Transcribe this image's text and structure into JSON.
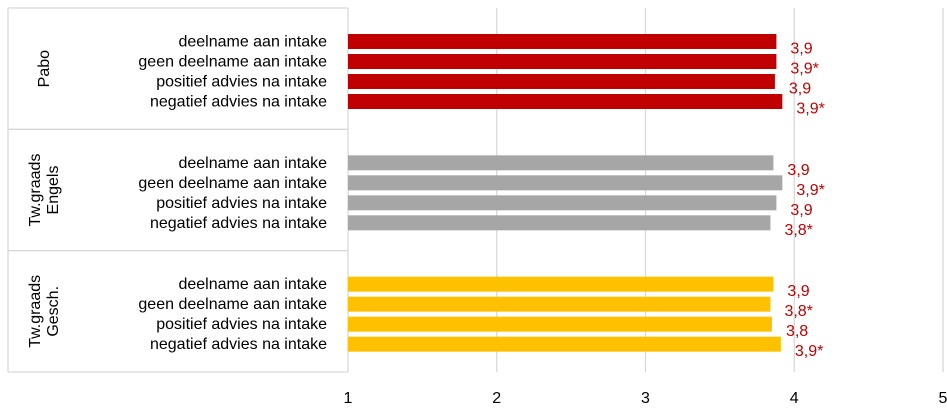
{
  "chart_data": {
    "type": "bar",
    "orientation": "horizontal",
    "xlim": [
      1,
      5
    ],
    "x_ticks": [
      "1",
      "2",
      "3",
      "4",
      "5"
    ],
    "grid": "vertical",
    "groups": [
      {
        "name_lines": [
          "Pabo"
        ],
        "color": "#C00000",
        "bars": [
          {
            "label": "deelname aan intake",
            "value": 3.88,
            "data_label": "3,9"
          },
          {
            "label": "geen deelname aan intake",
            "value": 3.88,
            "data_label": "3,9*"
          },
          {
            "label": "positief advies na intake",
            "value": 3.87,
            "data_label": "3,9"
          },
          {
            "label": "negatief advies na intake",
            "value": 3.92,
            "data_label": "3,9*"
          }
        ]
      },
      {
        "name_lines": [
          "Tw.graads",
          "Engels"
        ],
        "color": "#A6A6A6",
        "bars": [
          {
            "label": "deelname aan intake",
            "value": 3.86,
            "data_label": "3,9"
          },
          {
            "label": "geen deelname aan intake",
            "value": 3.92,
            "data_label": "3,9*"
          },
          {
            "label": "positief advies na intake",
            "value": 3.88,
            "data_label": "3,9"
          },
          {
            "label": "negatief advies na intake",
            "value": 3.84,
            "data_label": "3,8*"
          }
        ]
      },
      {
        "name_lines": [
          "Tw.graads",
          "Gesch."
        ],
        "color": "#FFC000",
        "bars": [
          {
            "label": "deelname aan intake",
            "value": 3.86,
            "data_label": "3,9"
          },
          {
            "label": "geen deelname aan intake",
            "value": 3.84,
            "data_label": "3,8*"
          },
          {
            "label": "positief advies na intake",
            "value": 3.85,
            "data_label": "3,8"
          },
          {
            "label": "negatief advies na intake",
            "value": 3.91,
            "data_label": "3,9*"
          }
        ]
      }
    ],
    "data_label_color": "#C00000",
    "gridline_color": "#D9D9D9"
  }
}
